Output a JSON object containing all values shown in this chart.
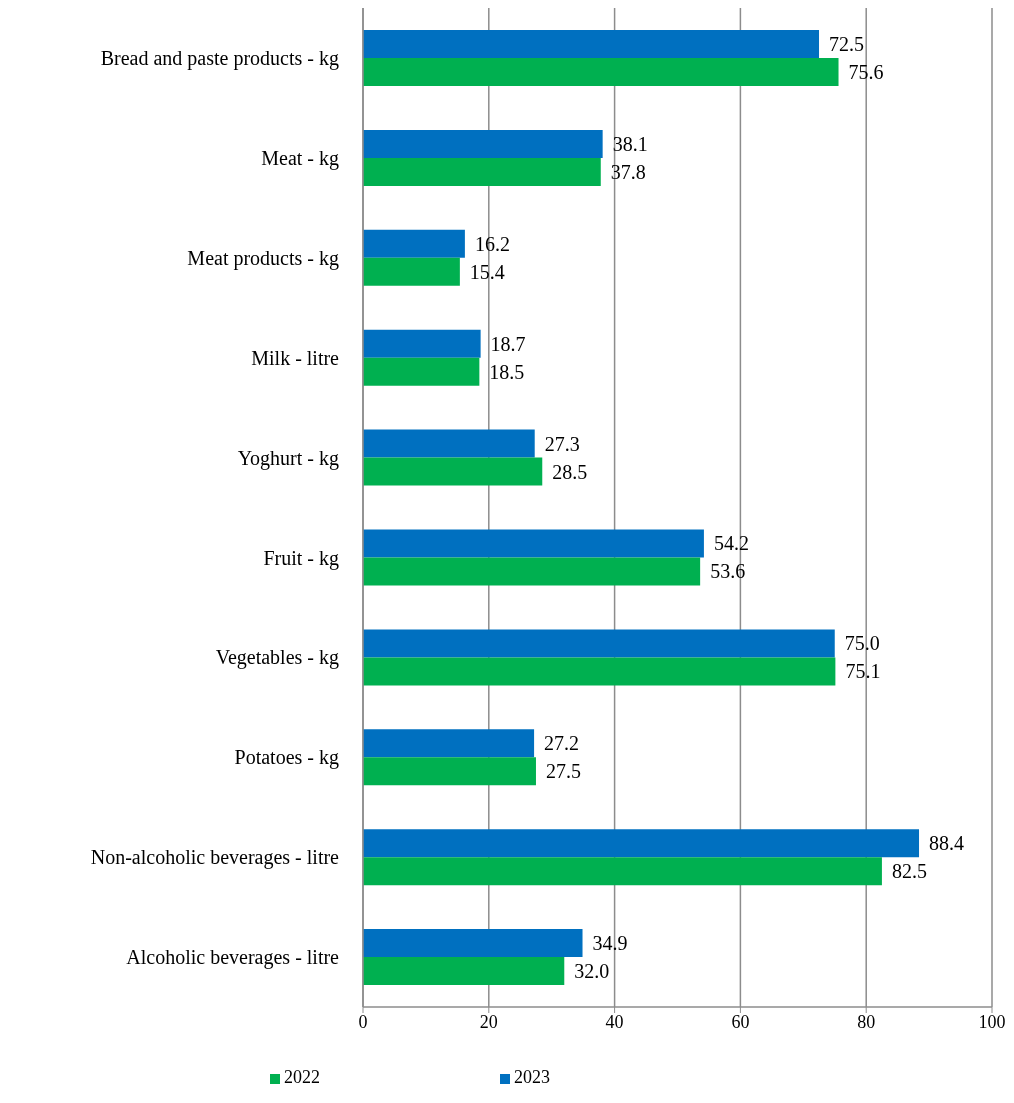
{
  "chart_data": {
    "type": "bar",
    "orientation": "horizontal",
    "categories": [
      "Bread and paste products - kg",
      "Meat - kg",
      "Meat products - kg",
      "Milk - litre",
      "Yoghurt - kg",
      "Fruit - kg",
      "Vegetables - kg",
      "Potatoes - kg",
      "Non-alcoholic beverages - litre",
      "Alcoholic beverages - litre"
    ],
    "series": [
      {
        "name": "2023",
        "color": "#0070c0",
        "values": [
          72.5,
          38.1,
          16.2,
          18.7,
          27.3,
          54.2,
          75.0,
          27.2,
          88.4,
          34.9
        ],
        "value_labels": [
          "72.5",
          "38.1",
          "16.2",
          "18.7",
          "27.3",
          "54.2",
          "75.0",
          "27.2",
          "88.4",
          "34.9"
        ]
      },
      {
        "name": "2022",
        "color": "#00b050",
        "values": [
          75.6,
          37.8,
          15.4,
          18.5,
          28.5,
          53.6,
          75.1,
          27.5,
          82.5,
          32.0
        ],
        "value_labels": [
          "75.6",
          "37.8",
          "15.4",
          "18.5",
          "28.5",
          "53.6",
          "75.1",
          "27.5",
          "82.5",
          "32.0"
        ]
      }
    ],
    "xlim": [
      0,
      100
    ],
    "xticks": [
      0,
      20,
      40,
      60,
      80,
      100
    ],
    "grid": "x",
    "legend": "bottom"
  }
}
